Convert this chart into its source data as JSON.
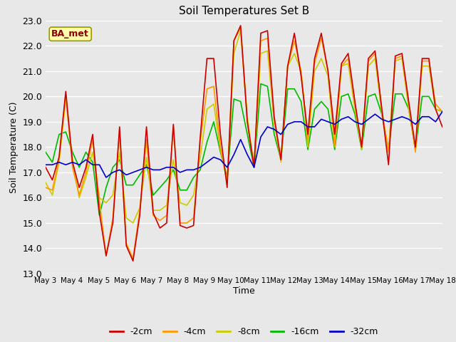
{
  "title": "Soil Temperatures Set B",
  "xlabel": "Time",
  "ylabel": "Soil Temperature (C)",
  "ylim": [
    13.0,
    23.0
  ],
  "yticks": [
    13.0,
    14.0,
    15.0,
    16.0,
    17.0,
    18.0,
    19.0,
    20.0,
    21.0,
    22.0,
    23.0
  ],
  "xtick_labels": [
    "May 3",
    "May 4",
    "May 5",
    "May 6",
    "May 7",
    "May 8",
    "May 9",
    "May 10",
    "May 11",
    "May 12",
    "May 13",
    "May 14",
    "May 15",
    "May 16",
    "May 17",
    "May 18"
  ],
  "legend_label": "BA_met",
  "colors": {
    "-2cm": "#cc0000",
    "-4cm": "#ff9900",
    "-8cm": "#cccc00",
    "-16cm": "#00bb00",
    "-32cm": "#0000cc"
  },
  "background_color": "#e8e8e8",
  "plot_bg_color": "#e8e8e8",
  "grid_color": "#ffffff",
  "series": {
    "-2cm": [
      17.2,
      16.7,
      17.6,
      20.2,
      17.4,
      16.4,
      17.2,
      18.5,
      15.4,
      13.7,
      15.0,
      18.8,
      14.1,
      13.5,
      15.3,
      18.8,
      15.4,
      14.8,
      15.0,
      18.9,
      14.9,
      14.8,
      14.9,
      18.4,
      21.5,
      21.5,
      18.5,
      16.4,
      22.2,
      22.8,
      19.0,
      17.2,
      22.5,
      22.6,
      19.2,
      17.5,
      21.2,
      22.5,
      20.8,
      18.5,
      21.5,
      22.5,
      21.0,
      18.5,
      21.3,
      21.7,
      19.8,
      18.0,
      21.5,
      21.8,
      19.5,
      17.3,
      21.6,
      21.7,
      19.8,
      18.0,
      21.5,
      21.5,
      19.5,
      18.8
    ],
    "-4cm": [
      16.4,
      16.3,
      17.5,
      20.1,
      17.2,
      16.1,
      17.0,
      18.3,
      15.9,
      13.7,
      15.2,
      18.6,
      14.2,
      13.6,
      15.5,
      18.3,
      15.3,
      15.1,
      15.3,
      18.8,
      15.0,
      15.0,
      15.2,
      18.2,
      20.3,
      20.4,
      18.0,
      16.6,
      22.2,
      22.7,
      19.0,
      17.2,
      22.2,
      22.3,
      19.0,
      17.5,
      21.2,
      22.2,
      21.0,
      18.3,
      21.3,
      22.3,
      21.0,
      18.0,
      21.2,
      21.5,
      19.7,
      18.0,
      21.4,
      21.7,
      19.5,
      17.8,
      21.5,
      21.6,
      19.7,
      17.8,
      21.4,
      21.4,
      19.7,
      19.4
    ],
    "-8cm": [
      16.6,
      16.1,
      17.4,
      19.9,
      17.5,
      16.0,
      16.8,
      17.8,
      16.0,
      15.8,
      16.1,
      17.8,
      15.2,
      15.0,
      15.6,
      17.6,
      15.5,
      15.5,
      15.7,
      17.5,
      15.8,
      15.7,
      16.1,
      17.6,
      19.5,
      19.7,
      17.9,
      16.6,
      21.7,
      22.6,
      19.2,
      17.2,
      21.7,
      21.8,
      19.0,
      17.4,
      21.2,
      21.7,
      21.0,
      18.0,
      21.0,
      21.5,
      20.8,
      18.0,
      21.2,
      21.3,
      19.5,
      17.9,
      21.2,
      21.5,
      19.3,
      17.9,
      21.4,
      21.5,
      19.5,
      17.9,
      21.2,
      21.2,
      19.5,
      19.4
    ],
    "-16cm": [
      17.8,
      17.4,
      18.5,
      18.6,
      17.8,
      17.2,
      17.8,
      17.4,
      15.3,
      16.4,
      17.2,
      17.5,
      16.5,
      16.5,
      16.9,
      17.3,
      16.1,
      16.4,
      16.7,
      17.1,
      16.3,
      16.3,
      16.8,
      17.1,
      18.2,
      19.0,
      17.8,
      16.8,
      19.9,
      19.8,
      18.5,
      17.2,
      20.5,
      20.4,
      18.5,
      17.5,
      20.3,
      20.3,
      19.8,
      17.9,
      19.5,
      19.8,
      19.5,
      17.9,
      20.0,
      20.1,
      19.3,
      17.9,
      20.0,
      20.1,
      19.3,
      17.9,
      20.1,
      20.1,
      19.5,
      17.9,
      20.0,
      20.0,
      19.5,
      19.4
    ],
    "-32cm": [
      17.3,
      17.3,
      17.4,
      17.3,
      17.4,
      17.3,
      17.5,
      17.3,
      17.3,
      16.8,
      17.0,
      17.1,
      16.9,
      17.0,
      17.1,
      17.2,
      17.1,
      17.1,
      17.2,
      17.2,
      17.0,
      17.1,
      17.1,
      17.2,
      17.4,
      17.6,
      17.5,
      17.2,
      17.7,
      18.3,
      17.7,
      17.2,
      18.4,
      18.8,
      18.7,
      18.5,
      18.9,
      19.0,
      19.0,
      18.8,
      18.8,
      19.1,
      19.0,
      18.9,
      19.1,
      19.2,
      19.0,
      18.9,
      19.1,
      19.3,
      19.1,
      19.0,
      19.1,
      19.2,
      19.1,
      18.9,
      19.2,
      19.2,
      19.0,
      19.4
    ]
  }
}
